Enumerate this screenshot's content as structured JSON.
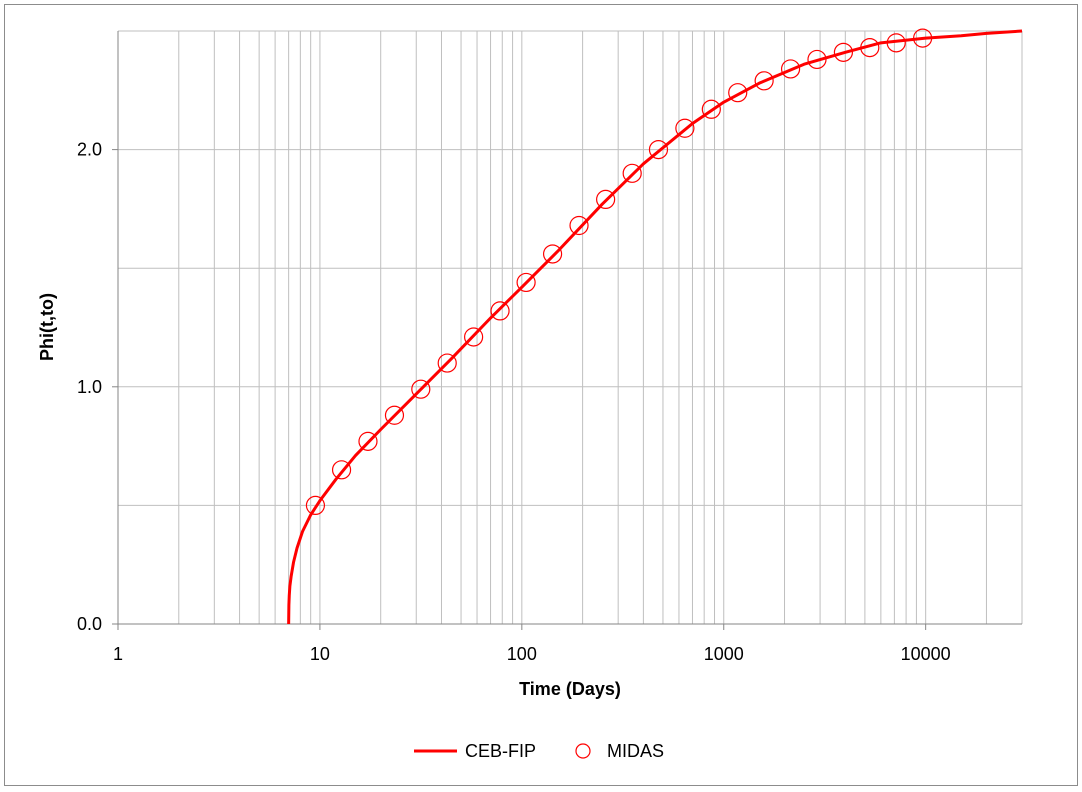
{
  "chart_data": {
    "type": "line",
    "title": "",
    "xlabel": "Time (Days)",
    "ylabel": "Phi(t,to)",
    "x_scale": "log",
    "xlim": [
      1,
      30000
    ],
    "ylim": [
      0,
      2.5
    ],
    "grid": true,
    "legend_position": "bottom",
    "x_ticks": [
      "1",
      "10",
      "100",
      "1000",
      "10000"
    ],
    "y_ticks": [
      "0.0",
      "1.0",
      "2.0"
    ],
    "series": [
      {
        "name": "CEB-FIP",
        "kind": "line",
        "color": "#ff0000",
        "points": [
          [
            7,
            0.0
          ],
          [
            7.02,
            0.08
          ],
          [
            7.05,
            0.12
          ],
          [
            7.1,
            0.16
          ],
          [
            7.2,
            0.2
          ],
          [
            7.4,
            0.26
          ],
          [
            7.7,
            0.32
          ],
          [
            8.2,
            0.39
          ],
          [
            9,
            0.46
          ],
          [
            10,
            0.52
          ],
          [
            12,
            0.61
          ],
          [
            15,
            0.71
          ],
          [
            20,
            0.82
          ],
          [
            30,
            0.97
          ],
          [
            45,
            1.12
          ],
          [
            70,
            1.29
          ],
          [
            100,
            1.42
          ],
          [
            150,
            1.57
          ],
          [
            250,
            1.77
          ],
          [
            400,
            1.94
          ],
          [
            700,
            2.11
          ],
          [
            1000,
            2.2
          ],
          [
            1500,
            2.28
          ],
          [
            2500,
            2.36
          ],
          [
            4000,
            2.41
          ],
          [
            6000,
            2.45
          ],
          [
            10000,
            2.47
          ],
          [
            15000,
            2.48
          ],
          [
            20000,
            2.49
          ],
          [
            30000,
            2.5
          ]
        ]
      },
      {
        "name": "MIDAS",
        "kind": "markers",
        "color": "#ff0000",
        "points": [
          [
            9.5,
            0.5
          ],
          [
            12.8,
            0.65
          ],
          [
            17.3,
            0.77
          ],
          [
            23.4,
            0.88
          ],
          [
            31.6,
            0.99
          ],
          [
            42.7,
            1.1
          ],
          [
            57.7,
            1.21
          ],
          [
            78,
            1.32
          ],
          [
            105,
            1.44
          ],
          [
            142,
            1.56
          ],
          [
            192,
            1.68
          ],
          [
            260,
            1.79
          ],
          [
            352,
            1.9
          ],
          [
            475,
            2.0
          ],
          [
            642,
            2.09
          ],
          [
            868,
            2.17
          ],
          [
            1173,
            2.24
          ],
          [
            1585,
            2.29
          ],
          [
            2143,
            2.34
          ],
          [
            2896,
            2.38
          ],
          [
            3914,
            2.41
          ],
          [
            5289,
            2.43
          ],
          [
            7150,
            2.45
          ],
          [
            9660,
            2.47
          ]
        ]
      }
    ]
  }
}
